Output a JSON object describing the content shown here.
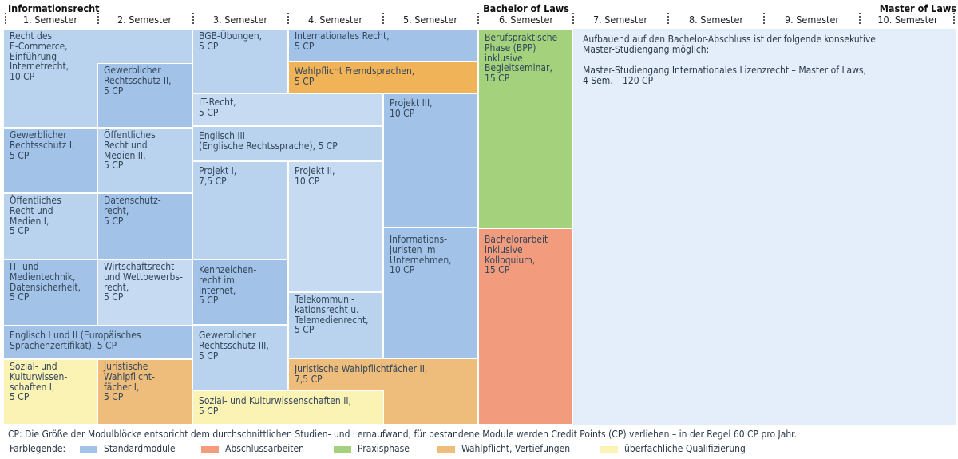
{
  "titles": {
    "left": "Informationsrecht",
    "mid": "Bachelor of Laws",
    "right": "Master of Laws"
  },
  "semesters": [
    "1. Semester",
    "2. Semester",
    "3. Semester",
    "4. Semester",
    "5. Semester",
    "6. Semester",
    "7. Semester",
    "8. Semester",
    "9. Semester",
    "10. Semester"
  ],
  "modules": {
    "ecommerce": "Recht des\nE-Commerce,\nEinführung\nInternetrecht,\n10 CP",
    "gewrs2": "Gewerblicher\nRechtsschutz II,\n5 CP",
    "gewrs1": "Gewerblicher\nRechtsschutz I,\n5 CP",
    "oeff2": "Öffentliches\nRecht und\nMedien II,\n5 CP",
    "oeff1": "Öffentliches\nRecht und\nMedien I,\n5 CP",
    "datenschutz": "Datenschutz-\nrecht,\n5 CP",
    "itmedien": "IT- und\nMedientechnik,\nDatensicherheit,\n5 CP",
    "wirtschaft": "Wirtschaftsrecht\nund Wettbewerbs-\nrecht,\n5 CP",
    "englisch12": "Englisch I und II (Europäisches\nSprachenzertifikat), 5 CP",
    "sozial1": "Sozial- und\nKulturwissen-\nschaften I,\n5 CP",
    "juristwahl1": "Juristische\nWahlpflicht-\nfächer I,\n5 CP",
    "bgb": "BGB-Übungen,\n5 CP",
    "internat": "Internationales Recht,\n5 CP",
    "fremdsprachen": "Wahlpflicht Fremdsprachen,\n5 CP",
    "itrecht": "IT-Recht,\n5 CP",
    "englisch3": "Englisch III\n(Englische Rechtssprache), 5 CP",
    "projekt1": "Projekt I,\n7,5 CP",
    "projekt2": "Projekt II,\n10 CP",
    "projekt3": "Projekt III,\n10 CP",
    "kennzeichen": "Kennzeichen-\nrecht im\nInternet,\n5 CP",
    "infojur": "Informations-\njuristen im\nUnternehmen,\n10 CP",
    "telekom": "Telekommuni-\nkationsrecht u.\nTelemedienrecht,\n5 CP",
    "gewrs3": "Gewerblicher\nRechtsschutz III,\n5 CP",
    "juristwahl2": "Juristische Wahlpflichtfächer II,\n7,5 CP",
    "sozial2": "Sozial- und Kulturwissenschaften II,\n5 CP",
    "bpp": "Berufspraktische\nPhase (BPP)\ninklusive\nBegleitseminar,\n15 CP",
    "bachelor": "Bachelorarbeit\ninklusive\nKolloquium,\n15 CP"
  },
  "master_text": "Aufbauend auf den Bachelor-Abschluss ist der folgende konsekutive\nMaster-Studiengang möglich:\n\nMaster-Studiengang Internationales Lizenzrecht – Master of Laws,\n4 Sem. – 120 CP",
  "footnote": "CP: Die Größe der Modulblöcke entspricht dem durchschnittlichen Studien- und Lernaufwand, für bestandene Module werden Credit Points (CP) verliehen – in der Regel 60 CP pro Jahr.",
  "legend": {
    "label": "Farblegende:",
    "items": [
      {
        "label": "Standardmodule",
        "color": "#a3c2e7"
      },
      {
        "label": "Abschlussarbeiten",
        "color": "#f39b7d"
      },
      {
        "label": "Praxisphase",
        "color": "#a3d17c"
      },
      {
        "label": "Wahlpflicht, Vertiefungen",
        "color": "#eebd7c"
      },
      {
        "label": "überfachliche Qualifizierung",
        "color": "#fbf3b4"
      }
    ]
  }
}
